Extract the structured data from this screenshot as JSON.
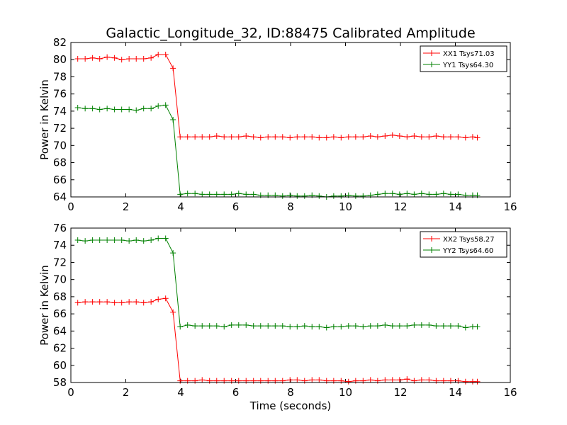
{
  "title": "Galactic_Longitude_32, ID:88475 Calibrated Amplitude",
  "xlabel": "Time (seconds)",
  "colors": {
    "red": "#ff0000",
    "green": "#008000"
  },
  "chart_data": [
    {
      "type": "line",
      "title": "Galactic_Longitude_32, ID:88475 Calibrated Amplitude",
      "xlabel": "",
      "ylabel": "Power in Kelvin",
      "xlim": [
        0,
        16
      ],
      "ylim": [
        64,
        82
      ],
      "xticks": [
        "0",
        "2",
        "4",
        "6",
        "8",
        "10",
        "12",
        "14",
        "16"
      ],
      "yticks": [
        "64",
        "66",
        "68",
        "70",
        "72",
        "74",
        "76",
        "78",
        "80",
        "82"
      ],
      "legend_position": "top-right",
      "x": [
        0.25,
        0.52,
        0.79,
        1.05,
        1.32,
        1.59,
        1.85,
        2.12,
        2.38,
        2.65,
        2.92,
        3.18,
        3.45,
        3.72,
        3.98,
        4.25,
        4.52,
        4.78,
        5.05,
        5.31,
        5.58,
        5.85,
        6.11,
        6.38,
        6.65,
        6.91,
        7.18,
        7.44,
        7.71,
        7.98,
        8.24,
        8.51,
        8.78,
        9.04,
        9.31,
        9.57,
        9.84,
        10.11,
        10.37,
        10.64,
        10.91,
        11.17,
        11.44,
        11.71,
        11.97,
        12.24,
        12.5,
        12.77,
        13.04,
        13.3,
        13.57,
        13.83,
        14.1,
        14.37,
        14.63,
        14.8
      ],
      "series": [
        {
          "name": "XX1 Tsys71.03",
          "color": "#ff0000",
          "values": [
            80.1,
            80.1,
            80.2,
            80.1,
            80.3,
            80.2,
            80.0,
            80.1,
            80.1,
            80.1,
            80.2,
            80.6,
            80.6,
            79.0,
            71.0,
            71.0,
            71.0,
            71.0,
            71.0,
            71.1,
            71.0,
            71.0,
            71.0,
            71.1,
            71.0,
            70.9,
            71.0,
            71.0,
            71.0,
            70.9,
            71.0,
            71.0,
            71.0,
            70.9,
            70.9,
            71.0,
            70.9,
            71.0,
            71.0,
            71.0,
            71.1,
            71.0,
            71.1,
            71.2,
            71.1,
            71.0,
            71.1,
            71.0,
            71.0,
            71.1,
            71.0,
            71.0,
            71.0,
            70.9,
            71.0,
            70.9
          ]
        },
        {
          "name": "YY1 Tsys64.30",
          "color": "#008000",
          "values": [
            74.4,
            74.3,
            74.3,
            74.2,
            74.3,
            74.2,
            74.2,
            74.2,
            74.1,
            74.3,
            74.3,
            74.6,
            74.7,
            73.0,
            64.3,
            64.4,
            64.4,
            64.3,
            64.3,
            64.3,
            64.3,
            64.3,
            64.4,
            64.3,
            64.3,
            64.2,
            64.2,
            64.2,
            64.1,
            64.2,
            64.1,
            64.1,
            64.2,
            64.1,
            64.0,
            64.1,
            64.1,
            64.2,
            64.1,
            64.1,
            64.2,
            64.3,
            64.4,
            64.4,
            64.3,
            64.4,
            64.3,
            64.4,
            64.3,
            64.3,
            64.4,
            64.3,
            64.3,
            64.2,
            64.2,
            64.2
          ]
        }
      ]
    },
    {
      "type": "line",
      "title": "",
      "xlabel": "Time (seconds)",
      "ylabel": "Power in Kelvin",
      "xlim": [
        0,
        16
      ],
      "ylim": [
        58,
        76
      ],
      "xticks": [
        "0",
        "2",
        "4",
        "6",
        "8",
        "10",
        "12",
        "14",
        "16"
      ],
      "yticks": [
        "58",
        "60",
        "62",
        "64",
        "66",
        "68",
        "70",
        "72",
        "74",
        "76"
      ],
      "legend_position": "top-right",
      "x": [
        0.25,
        0.52,
        0.79,
        1.05,
        1.32,
        1.59,
        1.85,
        2.12,
        2.38,
        2.65,
        2.92,
        3.18,
        3.45,
        3.72,
        3.98,
        4.25,
        4.52,
        4.78,
        5.05,
        5.31,
        5.58,
        5.85,
        6.11,
        6.38,
        6.65,
        6.91,
        7.18,
        7.44,
        7.71,
        7.98,
        8.24,
        8.51,
        8.78,
        9.04,
        9.31,
        9.57,
        9.84,
        10.11,
        10.37,
        10.64,
        10.91,
        11.17,
        11.44,
        11.71,
        11.97,
        12.24,
        12.5,
        12.77,
        13.04,
        13.3,
        13.57,
        13.83,
        14.1,
        14.37,
        14.63,
        14.8
      ],
      "series": [
        {
          "name": "XX2 Tsys58.27",
          "color": "#ff0000",
          "values": [
            67.3,
            67.4,
            67.4,
            67.4,
            67.4,
            67.3,
            67.3,
            67.4,
            67.4,
            67.3,
            67.4,
            67.7,
            67.8,
            66.2,
            58.2,
            58.2,
            58.2,
            58.3,
            58.2,
            58.2,
            58.2,
            58.2,
            58.2,
            58.2,
            58.2,
            58.2,
            58.2,
            58.2,
            58.2,
            58.3,
            58.3,
            58.2,
            58.3,
            58.3,
            58.2,
            58.2,
            58.2,
            58.1,
            58.2,
            58.2,
            58.3,
            58.2,
            58.3,
            58.3,
            58.3,
            58.4,
            58.2,
            58.3,
            58.3,
            58.2,
            58.2,
            58.2,
            58.2,
            58.1,
            58.1,
            58.1
          ]
        },
        {
          "name": "YY2 Tsys64.60",
          "color": "#008000",
          "values": [
            74.6,
            74.5,
            74.6,
            74.6,
            74.6,
            74.6,
            74.6,
            74.5,
            74.6,
            74.5,
            74.6,
            74.8,
            74.8,
            73.1,
            64.5,
            64.7,
            64.6,
            64.6,
            64.6,
            64.6,
            64.5,
            64.7,
            64.7,
            64.7,
            64.6,
            64.6,
            64.6,
            64.6,
            64.6,
            64.5,
            64.5,
            64.6,
            64.5,
            64.5,
            64.4,
            64.5,
            64.5,
            64.6,
            64.6,
            64.5,
            64.6,
            64.6,
            64.7,
            64.6,
            64.6,
            64.6,
            64.7,
            64.7,
            64.7,
            64.6,
            64.6,
            64.6,
            64.6,
            64.4,
            64.5,
            64.5
          ]
        }
      ]
    }
  ]
}
